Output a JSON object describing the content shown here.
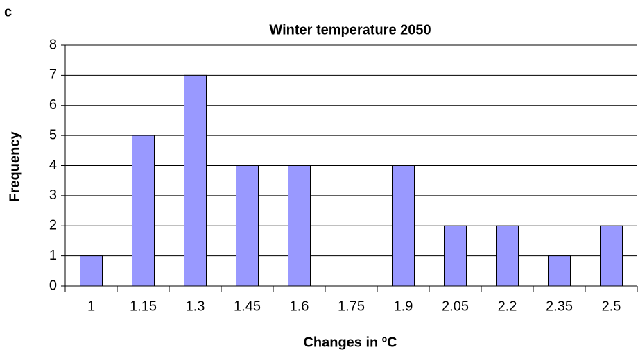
{
  "chart_data": {
    "type": "bar",
    "panel_label": "c",
    "title": "Winter temperature 2050",
    "x_label": "Changes in ºC",
    "y_label": "Frequency",
    "categories": [
      "1",
      "1.15",
      "1.3",
      "1.45",
      "1.6",
      "1.75",
      "1.9",
      "2.05",
      "2.2",
      "2.35",
      "2.5"
    ],
    "values": [
      1,
      5,
      7,
      4,
      4,
      0,
      4,
      2,
      2,
      1,
      2
    ],
    "color": "#9999ff",
    "ylim": [
      0,
      8
    ],
    "yticks": [
      0,
      1,
      2,
      3,
      4,
      5,
      6,
      7,
      8
    ],
    "grid": true
  }
}
